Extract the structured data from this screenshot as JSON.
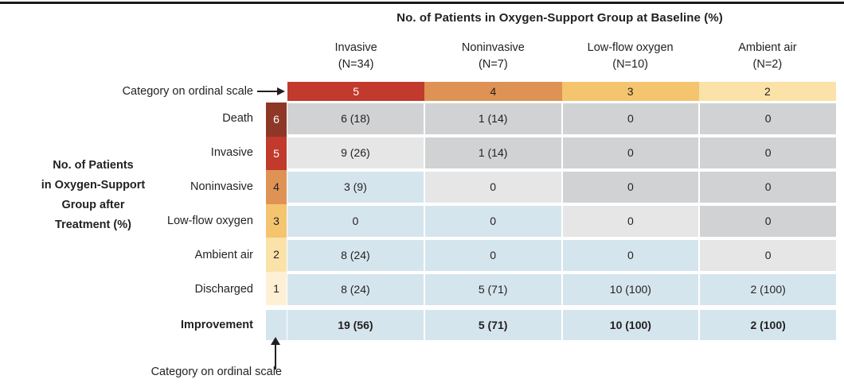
{
  "title": "No. of Patients in Oxygen-Support Group at Baseline (%)",
  "category_pointer_label": "Category on ordinal scale",
  "bottom_pointer_label": "Category on ordinal scale",
  "left_axis_label_lines": [
    "No. of Patients",
    "in Oxygen-Support",
    "Group after",
    "Treatment (%)"
  ],
  "colors": {
    "ink": "#231f20",
    "rule": "#1a1a1a",
    "maroon": "#8e3727",
    "red": "#c13a2b",
    "orange": "#de9355",
    "gold": "#f4c46e",
    "pale_yellow": "#fae2a8",
    "cream": "#fdf0d5",
    "blue_improved": "#d5e5ee",
    "gray_same": "#e6e6e7",
    "gray_worse": "#d1d2d3",
    "white_text": "#ffffff"
  },
  "chart_data": {
    "type": "heatmap",
    "title": "No. of Patients in Oxygen-Support Group at Baseline (%)",
    "row_axis_label": "No. of Patients in Oxygen-Support Group after Treatment (%)",
    "ordinal_axis_label": "Category on ordinal scale",
    "legend_note": "cell state: improved = blue, same = light gray, worse = dark gray",
    "columns": [
      {
        "label": "Invasive",
        "n": "(N=34)",
        "category": "5",
        "category_color_key": "red",
        "category_text_white": true
      },
      {
        "label": "Noninvasive",
        "n": "(N=7)",
        "category": "4",
        "category_color_key": "orange",
        "category_text_white": false
      },
      {
        "label": "Low-flow oxygen",
        "n": "(N=10)",
        "category": "3",
        "category_color_key": "gold",
        "category_text_white": false
      },
      {
        "label": "Ambient air",
        "n": "(N=2)",
        "category": "2",
        "category_color_key": "pale_yellow",
        "category_text_white": false
      }
    ],
    "rows": [
      {
        "label": "Death",
        "badge": "6",
        "badge_color_key": "maroon",
        "badge_text_white": true,
        "cells": [
          {
            "value": "6 (18)",
            "state": "worse"
          },
          {
            "value": "1 (14)",
            "state": "worse"
          },
          {
            "value": "0",
            "state": "worse"
          },
          {
            "value": "0",
            "state": "worse"
          }
        ]
      },
      {
        "label": "Invasive",
        "badge": "5",
        "badge_color_key": "red",
        "badge_text_white": true,
        "cells": [
          {
            "value": "9 (26)",
            "state": "same"
          },
          {
            "value": "1 (14)",
            "state": "worse"
          },
          {
            "value": "0",
            "state": "worse"
          },
          {
            "value": "0",
            "state": "worse"
          }
        ]
      },
      {
        "label": "Noninvasive",
        "badge": "4",
        "badge_color_key": "orange",
        "badge_text_white": false,
        "cells": [
          {
            "value": "3 (9)",
            "state": "improved"
          },
          {
            "value": "0",
            "state": "same"
          },
          {
            "value": "0",
            "state": "worse"
          },
          {
            "value": "0",
            "state": "worse"
          }
        ]
      },
      {
        "label": "Low-flow oxygen",
        "badge": "3",
        "badge_color_key": "gold",
        "badge_text_white": false,
        "cells": [
          {
            "value": "0",
            "state": "improved"
          },
          {
            "value": "0",
            "state": "improved"
          },
          {
            "value": "0",
            "state": "same"
          },
          {
            "value": "0",
            "state": "worse"
          }
        ]
      },
      {
        "label": "Ambient air",
        "badge": "2",
        "badge_color_key": "pale_yellow",
        "badge_text_white": false,
        "cells": [
          {
            "value": "8 (24)",
            "state": "improved"
          },
          {
            "value": "0",
            "state": "improved"
          },
          {
            "value": "0",
            "state": "improved"
          },
          {
            "value": "0",
            "state": "same"
          }
        ]
      },
      {
        "label": "Discharged",
        "badge": "1",
        "badge_color_key": "cream",
        "badge_text_white": false,
        "cells": [
          {
            "value": "8 (24)",
            "state": "improved"
          },
          {
            "value": "5 (71)",
            "state": "improved"
          },
          {
            "value": "10 (100)",
            "state": "improved"
          },
          {
            "value": "2 (100)",
            "state": "improved"
          }
        ]
      }
    ],
    "improvement_row": {
      "label": "Improvement",
      "cells": [
        "19 (56)",
        "5 (71)",
        "10 (100)",
        "2 (100)"
      ]
    }
  }
}
